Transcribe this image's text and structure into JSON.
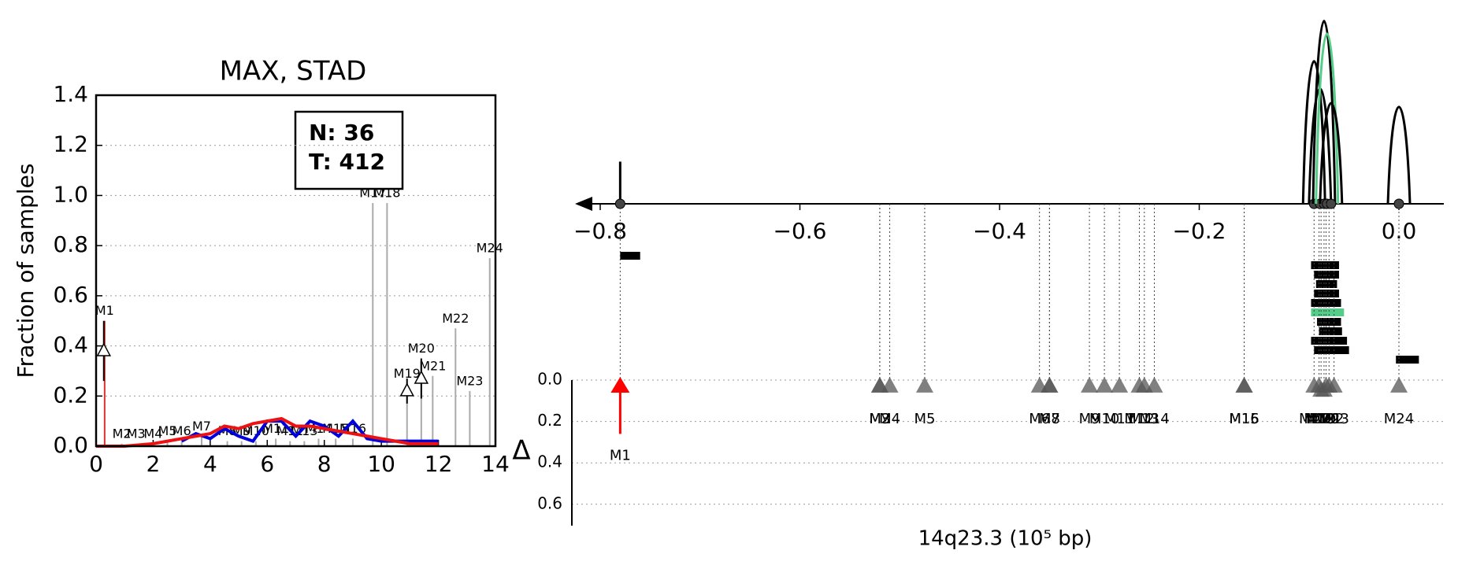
{
  "chart_data": [
    {
      "type": "bar",
      "title": "MAX, STAD",
      "ylabel": "Fraction of samples",
      "xlim": [
        0,
        14
      ],
      "xticks": [
        0,
        2,
        4,
        6,
        8,
        10,
        12,
        14
      ],
      "ylim": [
        0,
        1.4
      ],
      "yticks": [
        {
          "value": 0,
          "label": "0.0"
        },
        0.2,
        0.4,
        0.6,
        0.8,
        {
          "value": 1,
          "label": "1.0"
        },
        1.2,
        1.4
      ],
      "grid": true,
      "annotation": [
        "N: 36",
        "T: 412"
      ],
      "bars": {
        "labels": [
          "M1",
          "M2",
          "M3",
          "M4",
          "M5",
          "M6",
          "M7",
          "M8",
          "M9",
          "M10",
          "M11",
          "M12",
          "M13",
          "M14",
          "M15",
          "M16",
          "M17",
          "M18",
          "M19",
          "M20",
          "M21",
          "M22",
          "M23",
          "M24"
        ],
        "x": [
          0.3,
          0.9,
          1.4,
          2.0,
          2.5,
          3.0,
          3.7,
          4.6,
          5.1,
          5.6,
          6.3,
          6.8,
          7.3,
          7.8,
          8.4,
          9.0,
          9.7,
          10.2,
          10.9,
          11.4,
          11.8,
          12.6,
          13.1,
          13.8
        ],
        "values": [
          0.5,
          0.01,
          0.01,
          0.01,
          0.02,
          0.02,
          0.04,
          0.02,
          0.02,
          0.02,
          0.03,
          0.02,
          0.02,
          0.03,
          0.03,
          0.03,
          0.97,
          0.97,
          0.25,
          0.35,
          0.28,
          0.47,
          0.22,
          0.75
        ],
        "colors": [
          "#e03030",
          "#aaaaaa",
          "#aaaaaa",
          "#aaaaaa",
          "#aaaaaa",
          "#aaaaaa",
          "#aaaaaa",
          "#aaaaaa",
          "#aaaaaa",
          "#aaaaaa",
          "#aaaaaa",
          "#aaaaaa",
          "#aaaaaa",
          "#aaaaaa",
          "#aaaaaa",
          "#aaaaaa",
          "#aaaaaa",
          "#aaaaaa",
          "#aaaaaa",
          "#aaaaaa",
          "#aaaaaa",
          "#aaaaaa",
          "#aaaaaa",
          "#aaaaaa"
        ]
      },
      "series": [
        {
          "color": "#0000dd",
          "x": [
            3,
            3.5,
            4,
            4.5,
            5,
            5.5,
            6,
            6.5,
            7,
            7.5,
            8,
            8.5,
            9,
            9.5,
            10,
            10.5,
            11,
            11.5,
            12
          ],
          "values": [
            0.02,
            0.05,
            0.03,
            0.07,
            0.04,
            0.02,
            0.1,
            0.1,
            0.04,
            0.1,
            0.08,
            0.04,
            0.1,
            0.03,
            0.02,
            0.02,
            0.02,
            0.02,
            0.02
          ]
        },
        {
          "color": "#ee1111",
          "x": [
            0,
            1,
            2,
            2.5,
            3,
            3.5,
            4,
            4.5,
            5,
            5.5,
            6,
            6.5,
            7,
            7.5,
            8,
            8.5,
            9,
            9.5,
            10,
            10.5,
            11,
            11.5,
            12
          ],
          "values": [
            0,
            0,
            0.01,
            0.02,
            0.03,
            0.04,
            0.05,
            0.08,
            0.07,
            0.09,
            0.1,
            0.11,
            0.08,
            0.08,
            0.07,
            0.06,
            0.05,
            0.04,
            0.03,
            0.02,
            0.01,
            0.01,
            0.01
          ]
        }
      ],
      "points": {
        "x": [
          0.27,
          10.9,
          11.4
        ],
        "values": [
          0.38,
          0.22,
          0.27
        ],
        "errors": [
          0.12,
          0.05,
          0.08
        ]
      }
    },
    {
      "type": "track",
      "xlabel": "14q23.3 (10⁵ bp)",
      "ylabel": "Δ",
      "xlim": [
        -0.83,
        0.05
      ],
      "xticks": [
        {
          "value": -0.8,
          "label": "−0.8"
        },
        {
          "value": -0.6,
          "label": "−0.6"
        },
        {
          "value": -0.4,
          "label": "−0.4"
        },
        {
          "value": -0.2,
          "label": "−0.2"
        },
        {
          "value": 0,
          "label": "0.0"
        }
      ],
      "ylim": [
        0,
        0.7
      ],
      "yticks": [
        {
          "value": 0,
          "label": "0.0"
        },
        0.2,
        0.4,
        0.6
      ],
      "markers": {
        "labels": [
          "M1",
          "M2",
          "M3",
          "M4",
          "M5",
          "M6",
          "M7",
          "M8",
          "M9",
          "M10",
          "M11",
          "M12",
          "M13",
          "M14",
          "M15",
          "M16",
          "M17",
          "M18",
          "M19",
          "M20",
          "M21",
          "M22",
          "M23",
          "M24"
        ],
        "x": [
          -0.78,
          -0.52,
          -0.52,
          -0.51,
          -0.475,
          -0.36,
          -0.35,
          -0.35,
          -0.31,
          -0.295,
          -0.28,
          -0.26,
          -0.255,
          -0.245,
          -0.155,
          -0.155,
          -0.085,
          -0.08,
          -0.078,
          -0.075,
          -0.073,
          -0.07,
          -0.065,
          0.0
        ],
        "values": [
          0.26,
          0.03,
          0.03,
          0.03,
          0.03,
          0.03,
          0.03,
          0.03,
          0.03,
          0.03,
          0.03,
          0.03,
          0.03,
          0.03,
          0.03,
          0.03,
          0.03,
          0.03,
          0.05,
          0.05,
          0.03,
          0.03,
          0.03,
          0.03
        ],
        "colors": [
          "#ff0000",
          "#555555",
          "#555555",
          "#555555",
          "#555555",
          "#555555",
          "#555555",
          "#555555",
          "#555555",
          "#555555",
          "#555555",
          "#555555",
          "#555555",
          "#555555",
          "#555555",
          "#555555",
          "#555555",
          "#555555",
          "#555555",
          "#555555",
          "#555555",
          "#555555",
          "#555555",
          "#555555"
        ]
      },
      "peaks": {
        "x": [
          -0.78,
          -0.085,
          -0.079,
          -0.075,
          -0.072,
          -0.068,
          0.0
        ],
        "values": [
          0.23,
          0.78,
          0.63,
          1.0,
          0.93,
          0.55,
          0.53
        ],
        "colors": [
          "#000000",
          "#000000",
          "#000000",
          "#000000",
          "#55cc88",
          "#000000",
          "#000000"
        ]
      },
      "intervals": {
        "starts": [
          -0.78,
          -0.088,
          -0.085,
          -0.083,
          -0.085,
          -0.088,
          -0.088,
          -0.082,
          -0.08,
          -0.088,
          -0.085,
          -0.003
        ],
        "ends": [
          -0.76,
          -0.06,
          -0.06,
          -0.062,
          -0.06,
          -0.058,
          -0.055,
          -0.058,
          -0.057,
          -0.052,
          -0.05,
          0.02
        ],
        "colors": [
          "#000000",
          "#000000",
          "#000000",
          "#000000",
          "#000000",
          "#000000",
          "#55cc88",
          "#000000",
          "#000000",
          "#000000",
          "#000000",
          "#000000"
        ]
      }
    }
  ]
}
